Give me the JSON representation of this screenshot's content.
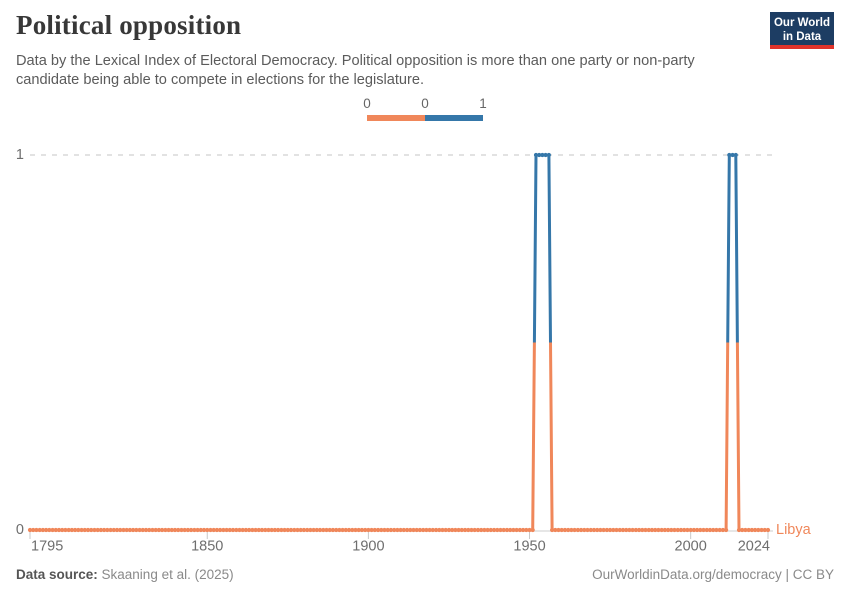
{
  "header": {
    "title": "Political opposition",
    "subtitle": "Data by the Lexical Index of Electoral Democracy. Political opposition is more than one party or non-party candidate being able to compete in elections for the legislature.",
    "logo": {
      "line1": "Our World",
      "line2": "in Data",
      "bg_color": "#1D3D63",
      "accent_color": "#E0332B"
    }
  },
  "legend": {
    "labels": [
      "0",
      "0",
      "1"
    ]
  },
  "chart_data": {
    "type": "line",
    "title": "Political opposition",
    "entity": "Libya",
    "x_range": [
      1795,
      2024
    ],
    "ylim": [
      0,
      1
    ],
    "x_ticks": [
      1795,
      1850,
      1900,
      1950,
      2000,
      2024
    ],
    "y_ticks": [
      0,
      1
    ],
    "grid": "dashed line at y=1 only",
    "legend_position": "top-center colorbar",
    "segments": [
      {
        "start_year": 1795,
        "end_year": 1951,
        "value": 0
      },
      {
        "start_year": 1952,
        "end_year": 1956,
        "value": 1
      },
      {
        "start_year": 1957,
        "end_year": 2011,
        "value": 0
      },
      {
        "start_year": 2012,
        "end_year": 2014,
        "value": 1
      },
      {
        "start_year": 2015,
        "end_year": 2024,
        "value": 0
      }
    ],
    "colors": {
      "value0": "#F0875A",
      "value1": "#3577A9"
    },
    "gridline_color": "#C6C6C6",
    "axis_color": "#DEDEDE",
    "tick_label_color": "#6E6E6E"
  },
  "footer": {
    "source_label": "Data source:",
    "source_value": " Skaaning et al. (2025)",
    "license": "OurWorldinData.org/democracy | CC BY"
  }
}
